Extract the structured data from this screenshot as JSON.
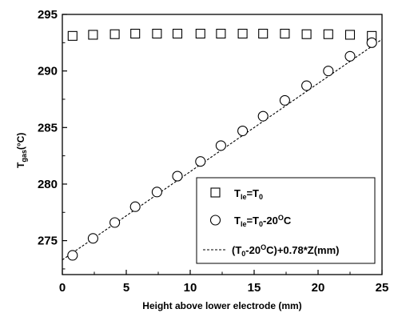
{
  "chart_data": {
    "type": "scatter",
    "xlabel": "Height above lower electrode (mm)",
    "ylabel": "T",
    "ylabel_sub": "gas",
    "ylabel_unit": "(°C)",
    "xlim": [
      0,
      25
    ],
    "ylim": [
      272,
      295
    ],
    "xticks": [
      0,
      5,
      10,
      15,
      20,
      25
    ],
    "yticks": [
      275,
      280,
      285,
      290,
      295
    ],
    "grid": false,
    "legend_position": "bottom-right",
    "series": [
      {
        "legend_main": "T",
        "legend_sub": "le",
        "legend_rest": "=T",
        "legend_sub2": "0",
        "legend_tail": "",
        "marker": "square",
        "x": [
          0.8,
          2.4,
          4.1,
          5.7,
          7.4,
          9.0,
          10.8,
          12.4,
          14.1,
          15.7,
          17.4,
          19.1,
          20.8,
          22.5,
          24.2
        ],
        "y": [
          293.1,
          293.2,
          293.25,
          293.3,
          293.3,
          293.3,
          293.3,
          293.3,
          293.3,
          293.3,
          293.3,
          293.25,
          293.25,
          293.2,
          293.1
        ]
      },
      {
        "legend_main": "T",
        "legend_sub": "le",
        "legend_rest": "=T",
        "legend_sub2": "0",
        "legend_tail": "-20",
        "legend_sup": "O",
        "legend_end": "C",
        "marker": "circle",
        "x": [
          0.8,
          2.4,
          4.1,
          5.7,
          7.4,
          9.0,
          10.8,
          12.4,
          14.1,
          15.7,
          17.4,
          19.1,
          20.8,
          22.5,
          24.2
        ],
        "y": [
          273.7,
          275.2,
          276.6,
          278.0,
          279.3,
          280.7,
          282.0,
          283.4,
          284.7,
          286.0,
          287.4,
          288.7,
          290.0,
          291.3,
          292.5
        ]
      },
      {
        "legend_main": "(T",
        "legend_sub": "0",
        "legend_rest": "-20",
        "legend_sup": "O",
        "legend_end": "C)+0.78*Z(mm)",
        "marker": "dashed-line",
        "intercept": 273.3,
        "slope": 0.78,
        "x_range": [
          0,
          25
        ]
      }
    ]
  }
}
